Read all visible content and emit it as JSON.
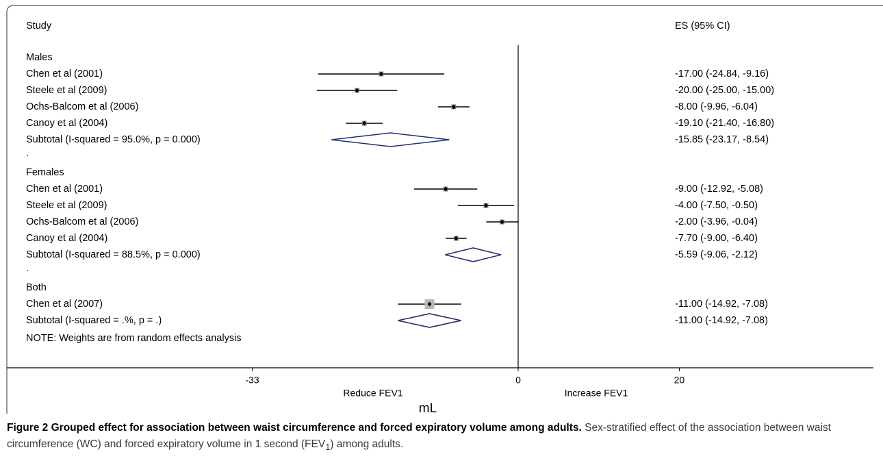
{
  "chart_data": {
    "type": "forest",
    "headers": {
      "study": "Study",
      "es": "ES (95% CI)"
    },
    "groups": [
      {
        "name": "Males",
        "studies": [
          {
            "label": "Chen et al (2001)",
            "es": -17.0,
            "lo": -24.84,
            "hi": -9.16,
            "text": "-17.00 (-24.84, -9.16)"
          },
          {
            "label": "Steele et al (2009)",
            "es": -20.0,
            "lo": -25.0,
            "hi": -15.0,
            "text": "-20.00 (-25.00, -15.00)"
          },
          {
            "label": "Ochs-Balcom et al (2006)",
            "es": -8.0,
            "lo": -9.96,
            "hi": -6.04,
            "text": "-8.00 (-9.96, -6.04)"
          },
          {
            "label": "Canoy et al (2004)",
            "es": -19.1,
            "lo": -21.4,
            "hi": -16.8,
            "text": "-19.10 (-21.40, -16.80)"
          }
        ],
        "subtotal": {
          "label": "Subtotal  (I-squared = 95.0%, p = 0.000)",
          "es": -15.85,
          "lo": -23.17,
          "hi": -8.54,
          "text": "-15.85 (-23.17, -8.54)"
        }
      },
      {
        "name": "Females",
        "studies": [
          {
            "label": "Chen et al (2001)",
            "es": -9.0,
            "lo": -12.92,
            "hi": -5.08,
            "text": "-9.00 (-12.92, -5.08)"
          },
          {
            "label": "Steele et al (2009)",
            "es": -4.0,
            "lo": -7.5,
            "hi": -0.5,
            "text": "-4.00 (-7.50, -0.50)"
          },
          {
            "label": "Ochs-Balcom et al (2006)",
            "es": -2.0,
            "lo": -3.96,
            "hi": -0.04,
            "text": "-2.00 (-3.96, -0.04)"
          },
          {
            "label": "Canoy et al (2004)",
            "es": -7.7,
            "lo": -9.0,
            "hi": -6.4,
            "text": "-7.70 (-9.00, -6.40)"
          }
        ],
        "subtotal": {
          "label": "Subtotal  (I-squared = 88.5%, p = 0.000)",
          "es": -5.59,
          "lo": -9.06,
          "hi": -2.12,
          "text": "-5.59 (-9.06, -2.12)"
        }
      },
      {
        "name": "Both",
        "studies": [
          {
            "label": "Chen et al (2007)",
            "es": -11.0,
            "lo": -14.92,
            "hi": -7.08,
            "text": "-11.00 (-14.92, -7.08)"
          }
        ],
        "subtotal": {
          "label": "Subtotal  (I-squared = .%, p = .)",
          "es": -11.0,
          "lo": -14.92,
          "hi": -7.08,
          "text": "-11.00 (-14.92, -7.08)"
        }
      }
    ],
    "separator": ".",
    "note": "NOTE: Weights are from random effects analysis",
    "x_ticks": [
      -33,
      0,
      20
    ],
    "x_tick_labels": [
      "-33",
      "0",
      "20"
    ],
    "xlim": [
      -33,
      20
    ],
    "reference_line": 0,
    "left_direction_label": "Reduce FEV1",
    "right_direction_label": "Increase FEV1",
    "xlabel": "mL",
    "colors": {
      "diamond": "#1f2d78",
      "ci_line": "#000000",
      "weight_box": "#b8b8b8"
    }
  },
  "caption": {
    "figure_label": "Figure 2",
    "title": "Grouped effect for association between waist circumference and forced expiratory volume among adults.",
    "body_before": "Sex-stratified effect of the association between waist circumference (WC) and forced expiratory volume in 1 second (FEV",
    "subscript": "1",
    "body_after": ") among adults."
  }
}
